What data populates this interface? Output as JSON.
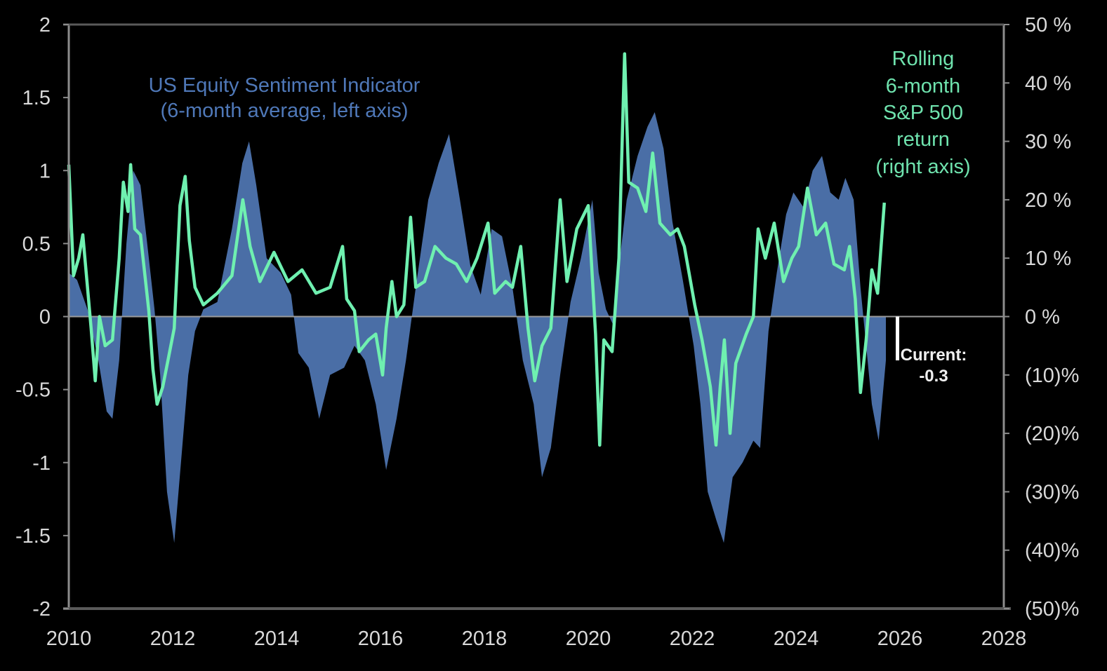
{
  "chart_data": {
    "type": "area+line",
    "title": "",
    "xlabel": "",
    "ylabel": "",
    "x_ticks": [
      "2010",
      "2012",
      "2014",
      "2016",
      "2018",
      "2020",
      "2022",
      "2024",
      "2026",
      "2028"
    ],
    "x_range": [
      2010,
      2028
    ],
    "left_axis": {
      "range": [
        -2,
        2
      ],
      "ticks": [
        2,
        1.5,
        1,
        0.5,
        0,
        -0.5,
        -1,
        -1.5,
        -2
      ],
      "tick_labels": [
        "2",
        "1.5",
        "1",
        "0.5",
        "0",
        "-0.5",
        "-1",
        "-1.5",
        "-2"
      ]
    },
    "right_axis": {
      "range": [
        -50,
        50
      ],
      "ticks": [
        50,
        40,
        30,
        20,
        10,
        0,
        -10,
        -20,
        -30,
        -40,
        -50
      ],
      "tick_labels": [
        "50 %",
        "40 %",
        "30 %",
        "20 %",
        "10 %",
        "0 %",
        "(10)%",
        "(20)%",
        "(30)%",
        "(40)%",
        "(50)%"
      ]
    },
    "grid": false,
    "legend": "none",
    "colors": {
      "background": "#000000",
      "sentiment_area": "#4a6ea6",
      "sp500_line": "#6ff0b0",
      "axis": "#8c8c8c",
      "zero_line": "#9a9a9a",
      "annotation_blue": "#4f78b8",
      "annotation_green": "#6fe3ae",
      "current_marker": "#ffffff"
    },
    "annotations": {
      "sentiment_label": [
        "US Equity Sentiment Indicator",
        "(6-month average, left axis)"
      ],
      "return_label": [
        "Rolling",
        "6-month",
        "S&P 500",
        "return",
        "(right axis)"
      ],
      "current_label": [
        "Current:",
        "-0.3"
      ]
    },
    "series": [
      {
        "name": "US Equity Sentiment Indicator (6-month average, left axis)",
        "axis": "left",
        "kind": "area",
        "x": [
          2010.0,
          2010.16,
          2010.36,
          2010.57,
          2010.73,
          2010.84,
          2010.97,
          2011.11,
          2011.24,
          2011.38,
          2011.51,
          2011.65,
          2011.76,
          2011.89,
          2012.03,
          2012.16,
          2012.3,
          2012.43,
          2012.59,
          2012.86,
          2013.14,
          2013.34,
          2013.47,
          2013.61,
          2013.81,
          2014.08,
          2014.28,
          2014.42,
          2014.62,
          2014.82,
          2015.03,
          2015.3,
          2015.5,
          2015.7,
          2015.91,
          2016.11,
          2016.31,
          2016.49,
          2016.68,
          2016.92,
          2017.12,
          2017.32,
          2017.53,
          2017.73,
          2017.93,
          2018.14,
          2018.34,
          2018.54,
          2018.74,
          2018.95,
          2019.11,
          2019.28,
          2019.46,
          2019.66,
          2019.86,
          2020.08,
          2020.2,
          2020.34,
          2020.47,
          2020.61,
          2020.74,
          2020.95,
          2021.14,
          2021.28,
          2021.45,
          2021.62,
          2021.82,
          2022.03,
          2022.16,
          2022.3,
          2022.47,
          2022.61,
          2022.78,
          2022.97,
          2023.18,
          2023.31,
          2023.47,
          2023.63,
          2023.81,
          2023.95,
          2024.14,
          2024.32,
          2024.5,
          2024.66,
          2024.82,
          2024.95,
          2025.11,
          2025.24,
          2025.35,
          2025.46,
          2025.59,
          2025.73
        ],
        "values": [
          0.3,
          0.25,
          0.05,
          -0.3,
          -0.65,
          -0.7,
          -0.3,
          0.5,
          1.0,
          0.9,
          0.5,
          0.05,
          -0.4,
          -1.2,
          -1.55,
          -1.0,
          -0.4,
          -0.1,
          0.05,
          0.1,
          0.6,
          1.05,
          1.2,
          0.9,
          0.4,
          0.3,
          0.15,
          -0.25,
          -0.35,
          -0.7,
          -0.4,
          -0.35,
          -0.2,
          -0.3,
          -0.6,
          -1.05,
          -0.7,
          -0.3,
          0.2,
          0.8,
          1.05,
          1.25,
          0.8,
          0.35,
          0.15,
          0.6,
          0.55,
          0.2,
          -0.3,
          -0.6,
          -1.1,
          -0.9,
          -0.4,
          0.1,
          0.4,
          0.8,
          0.3,
          0.05,
          -0.05,
          0.4,
          0.8,
          1.1,
          1.3,
          1.4,
          1.15,
          0.65,
          0.25,
          -0.2,
          -0.6,
          -1.2,
          -1.4,
          -1.55,
          -1.1,
          -1.0,
          -0.85,
          -0.9,
          -0.1,
          0.3,
          0.7,
          0.85,
          0.75,
          1.0,
          1.1,
          0.85,
          0.8,
          0.95,
          0.8,
          0.2,
          -0.2,
          -0.6,
          -0.85,
          -0.3
        ]
      },
      {
        "name": "Rolling 6-month S&P 500 return (right axis)",
        "axis": "right",
        "kind": "line",
        "unit": "%",
        "x": [
          2010.0,
          2010.09,
          2010.19,
          2010.27,
          2010.35,
          2010.43,
          2010.51,
          2010.59,
          2010.7,
          2010.84,
          2010.97,
          2011.05,
          2011.14,
          2011.19,
          2011.27,
          2011.38,
          2011.54,
          2011.62,
          2011.7,
          2011.81,
          2011.92,
          2012.03,
          2012.14,
          2012.24,
          2012.32,
          2012.43,
          2012.59,
          2012.86,
          2013.14,
          2013.35,
          2013.49,
          2013.68,
          2013.95,
          2014.22,
          2014.49,
          2014.76,
          2015.03,
          2015.27,
          2015.35,
          2015.5,
          2015.59,
          2015.77,
          2015.91,
          2016.04,
          2016.11,
          2016.22,
          2016.31,
          2016.45,
          2016.58,
          2016.68,
          2016.85,
          2017.05,
          2017.26,
          2017.46,
          2017.66,
          2017.86,
          2018.07,
          2018.2,
          2018.41,
          2018.54,
          2018.7,
          2018.84,
          2018.97,
          2019.11,
          2019.28,
          2019.46,
          2019.59,
          2019.78,
          2020.0,
          2020.14,
          2020.22,
          2020.3,
          2020.46,
          2020.59,
          2020.7,
          2020.78,
          2020.95,
          2021.11,
          2021.24,
          2021.38,
          2021.58,
          2021.72,
          2021.85,
          2022.05,
          2022.19,
          2022.35,
          2022.46,
          2022.54,
          2022.62,
          2022.73,
          2022.84,
          2023.04,
          2023.18,
          2023.27,
          2023.41,
          2023.58,
          2023.76,
          2023.92,
          2024.05,
          2024.22,
          2024.39,
          2024.57,
          2024.73,
          2024.93,
          2025.03,
          2025.14,
          2025.24,
          2025.35,
          2025.46,
          2025.57,
          2025.7
        ],
        "values": [
          26,
          7,
          10,
          14,
          6,
          -2,
          -11,
          0,
          -5,
          -4,
          10,
          23,
          18,
          26,
          15,
          14,
          1,
          -9,
          -15,
          -12,
          -7,
          -2,
          19,
          24,
          13,
          5,
          2,
          4,
          7,
          20,
          12,
          6,
          11,
          6,
          8,
          4,
          5,
          12,
          3,
          1,
          -6,
          -4,
          -3,
          -10,
          -2,
          6,
          0,
          2,
          17,
          5,
          6,
          12,
          10,
          9,
          6,
          10,
          16,
          4,
          6,
          5,
          12,
          -2,
          -11,
          -5,
          -2,
          20,
          6,
          15,
          19,
          -3,
          -22,
          -4,
          -6,
          10,
          45,
          23,
          22,
          18,
          28,
          16,
          14,
          15,
          12,
          2,
          -4,
          -12,
          -22,
          -12,
          -4,
          -20,
          -8,
          -3,
          0,
          15,
          10,
          16,
          6,
          10,
          12,
          22,
          14,
          16,
          9,
          8,
          12,
          3,
          -13,
          -4,
          8,
          4,
          19.5
        ]
      }
    ],
    "current_value": -0.3
  }
}
